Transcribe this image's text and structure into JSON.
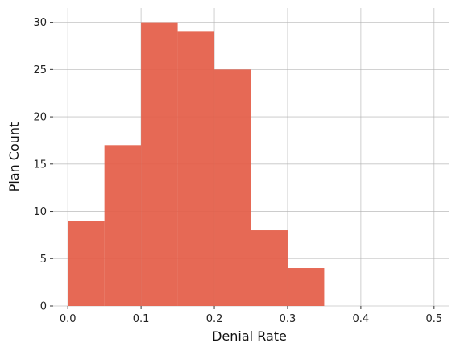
{
  "chart_data": {
    "type": "bar",
    "subtype": "histogram",
    "bins": [
      {
        "start": 0.0,
        "end": 0.05,
        "value": 9
      },
      {
        "start": 0.05,
        "end": 0.1,
        "value": 17
      },
      {
        "start": 0.1,
        "end": 0.15,
        "value": 30
      },
      {
        "start": 0.15,
        "end": 0.2,
        "value": 29
      },
      {
        "start": 0.2,
        "end": 0.25,
        "value": 25
      },
      {
        "start": 0.25,
        "end": 0.3,
        "value": 8
      },
      {
        "start": 0.3,
        "end": 0.35,
        "value": 4
      }
    ],
    "xlabel": "Denial Rate",
    "ylabel": "Plan Count",
    "xlim": [
      -0.02,
      0.52
    ],
    "ylim": [
      0,
      31.5
    ],
    "xticks": [
      0.0,
      0.1,
      0.2,
      0.3,
      0.4,
      0.5
    ],
    "xtick_labels": [
      "0.0",
      "0.1",
      "0.2",
      "0.3",
      "0.4",
      "0.5"
    ],
    "yticks": [
      0,
      5,
      10,
      15,
      20,
      25,
      30
    ],
    "ytick_labels": [
      "0",
      "5",
      "10",
      "15",
      "20",
      "25",
      "30"
    ],
    "grid": true,
    "bar_color": "#e45c47"
  }
}
